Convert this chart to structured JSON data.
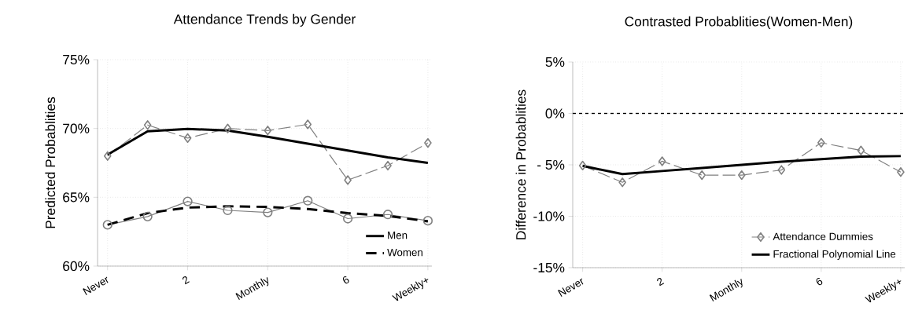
{
  "chart_data": [
    {
      "type": "line",
      "title": "Attendance Trends by Gender",
      "ylabel": "Predicted Probablities",
      "categories": [
        "Never",
        null,
        "2",
        null,
        "Monthly",
        null,
        "6",
        null,
        "Weekly+"
      ],
      "ylim": [
        60,
        75
      ],
      "yticks": [
        {
          "value": 60,
          "label": "60%"
        },
        {
          "value": 65,
          "label": "65%"
        },
        {
          "value": 70,
          "label": "70%"
        },
        {
          "value": 75,
          "label": "75%"
        }
      ],
      "grid": true,
      "legend": "bottom right",
      "series": [
        {
          "color": "#808080",
          "marker": "diamond",
          "line_style": "dashed",
          "values": [
            68.0,
            70.25,
            69.3,
            70.0,
            69.85,
            70.3,
            66.25,
            67.3,
            68.95
          ]
        },
        {
          "color": "#808080",
          "marker": "circle",
          "line_style": "solid",
          "values": [
            63.0,
            63.6,
            64.7,
            64.05,
            63.9,
            64.75,
            63.45,
            63.75,
            63.3
          ]
        },
        {
          "name": "Men",
          "color": "#000000",
          "marker": "none",
          "line_style": "solid",
          "values": [
            68.1,
            69.8,
            69.97,
            69.85,
            69.4,
            68.9,
            68.4,
            67.9,
            67.5
          ]
        },
        {
          "name": "Women",
          "color": "#000000",
          "marker": "none",
          "line_style": "dashed",
          "values": [
            63.0,
            63.85,
            64.25,
            64.35,
            64.3,
            64.15,
            63.85,
            63.65,
            63.25
          ]
        }
      ]
    },
    {
      "type": "line",
      "title": "Contrasted Probablities(Women-Men)",
      "ylabel": "Difference in Probablities",
      "categories": [
        "Never",
        null,
        "2",
        null,
        "Monthly",
        null,
        "6",
        null,
        "Weekly+"
      ],
      "ylim": [
        -15,
        5
      ],
      "yticks": [
        {
          "value": -15,
          "label": "-15%"
        },
        {
          "value": -10,
          "label": "-10%"
        },
        {
          "value": -5,
          "label": "- 5%"
        },
        {
          "value": 0,
          "label": "0%"
        },
        {
          "value": 5,
          "label": "5%"
        }
      ],
      "grid": true,
      "legend": "bottom right",
      "ref_lines": [
        {
          "axis": "y",
          "value": 0,
          "color": "#000000",
          "line_style": "dashed"
        }
      ],
      "series": [
        {
          "name": "Attendance Dummies",
          "color": "#808080",
          "marker": "diamond",
          "line_style": "dashed",
          "values": [
            -5.07,
            -6.7,
            -4.65,
            -6.0,
            -6.0,
            -5.5,
            -2.85,
            -3.6,
            -5.7
          ]
        },
        {
          "name": "Fractional Polynomial Line",
          "color": "#000000",
          "marker": "none",
          "line_style": "solid",
          "values": [
            -5.1,
            -5.9,
            -5.6,
            -5.3,
            -5.0,
            -4.7,
            -4.45,
            -4.2,
            -4.15
          ]
        }
      ]
    }
  ]
}
